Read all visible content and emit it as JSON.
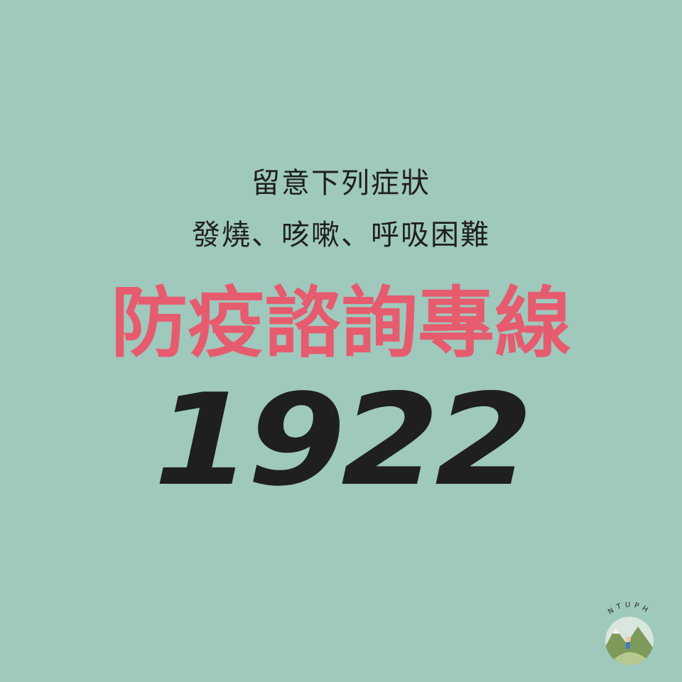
{
  "notice": {
    "line1": "留意下列症狀",
    "line2": "發燒、咳嗽、呼吸困難",
    "headline": "防疫諮詢專線",
    "hotline_number": "1922"
  },
  "logo": {
    "text": "NTUPH"
  },
  "colors": {
    "background": "#9fc9bd",
    "headline": "#e65b6e",
    "text": "#1f1f1f"
  }
}
